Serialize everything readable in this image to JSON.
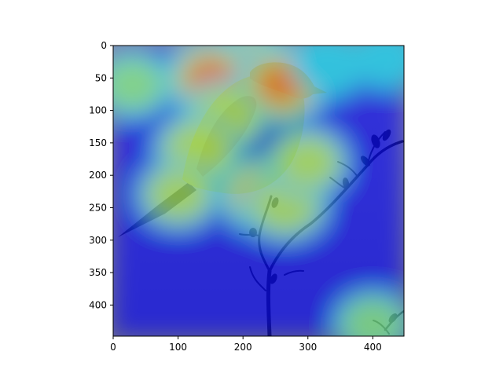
{
  "chart_data": {
    "type": "heatmap",
    "description_kind": "image with heatmap overlay",
    "xlim": [
      0,
      448
    ],
    "ylim": [
      448,
      0
    ],
    "x_ticks": [
      0,
      100,
      200,
      300,
      400
    ],
    "y_ticks": [
      0,
      50,
      100,
      150,
      200,
      250,
      300,
      350,
      400
    ],
    "grid": false,
    "colormap": "jet",
    "overlay_alpha": 0.55,
    "hotspots": [
      {
        "x": 210,
        "y": 40,
        "intensity": 1.0
      },
      {
        "x": 150,
        "y": 50,
        "intensity": 0.8
      },
      {
        "x": 260,
        "y": 60,
        "intensity": 0.8
      },
      {
        "x": 170,
        "y": 110,
        "intensity": 0.6
      },
      {
        "x": 130,
        "y": 160,
        "intensity": 0.65
      },
      {
        "x": 100,
        "y": 230,
        "intensity": 0.55
      },
      {
        "x": 230,
        "y": 230,
        "intensity": 0.7
      },
      {
        "x": 265,
        "y": 245,
        "intensity": 0.65
      },
      {
        "x": 30,
        "y": 60,
        "intensity": 0.5
      },
      {
        "x": 330,
        "y": 30,
        "intensity": 0.45
      },
      {
        "x": 300,
        "y": 180,
        "intensity": 0.55
      },
      {
        "x": 420,
        "y": 20,
        "intensity": 0.35
      },
      {
        "x": 400,
        "y": 430,
        "intensity": 0.5
      }
    ]
  }
}
